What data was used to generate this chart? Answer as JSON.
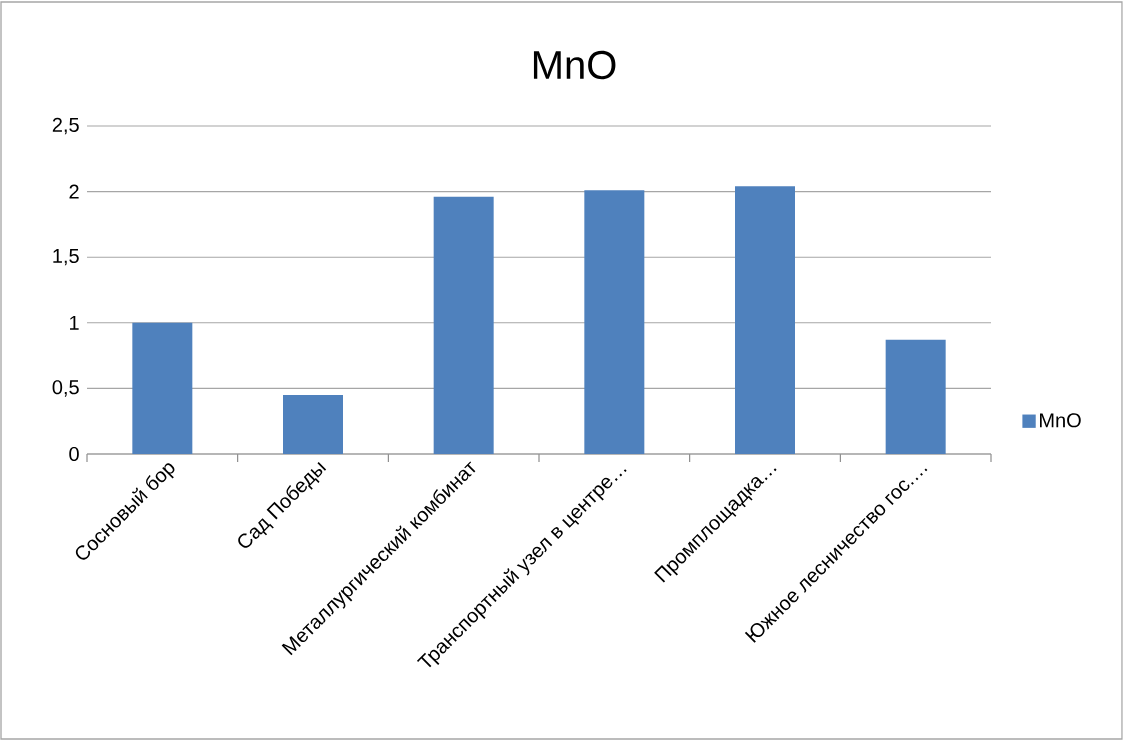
{
  "chart_data": {
    "type": "bar",
    "title": "MnO",
    "categories": [
      "Сосновый бор",
      "Сад Победы",
      "Металлургический комбинат",
      "Транспортный узел в центре…",
      "Промплощадка…",
      "Южное лесничество гос.…"
    ],
    "series": [
      {
        "name": "MnO",
        "color": "#4f81bd",
        "values": [
          1.0,
          0.45,
          1.96,
          2.01,
          2.04,
          0.87
        ]
      }
    ],
    "ylim": [
      0,
      2.5
    ],
    "yticks": [
      {
        "value": 0,
        "label": "0"
      },
      {
        "value": 0.5,
        "label": "0,5"
      },
      {
        "value": 1,
        "label": "1"
      },
      {
        "value": 1.5,
        "label": "1,5"
      },
      {
        "value": 2,
        "label": "2"
      },
      {
        "value": 2.5,
        "label": "2,5"
      }
    ],
    "grid": "y",
    "legend": "right"
  }
}
